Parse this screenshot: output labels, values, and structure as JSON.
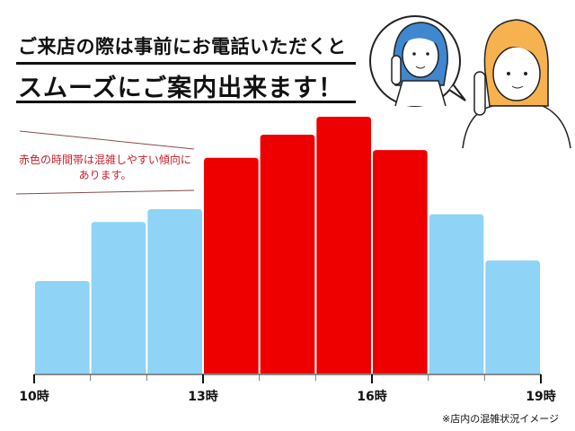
{
  "header": {
    "line1": "ご来店の際は事前にお電話いただくと",
    "line2": "スムーズにご案内出来ます！"
  },
  "note": {
    "line1": "赤色の時間帯は混雑しやすい傾向に",
    "line2": "あります。"
  },
  "footnote": "※店内の混雑状況イメージ",
  "illustration": {
    "icons": [
      "staff-on-phone-icon",
      "customer-on-phone-icon"
    ]
  },
  "colors": {
    "normal": "#8fd3f7",
    "busy": "#ee0000",
    "note": "#c8202a"
  },
  "chart_data": {
    "type": "bar",
    "categories": [
      "10時",
      "11時",
      "12時",
      "13時",
      "14時",
      "15時",
      "16時",
      "17時",
      "18時"
    ],
    "values": [
      36,
      59,
      64,
      84,
      93,
      100,
      87,
      62,
      44
    ],
    "busy": [
      false,
      false,
      false,
      true,
      true,
      true,
      true,
      false,
      false
    ],
    "x_tick_labels": [
      "10時",
      "13時",
      "16時",
      "19時"
    ],
    "y_axis": "none (relative congestion)",
    "grid": false,
    "legend": "none"
  }
}
